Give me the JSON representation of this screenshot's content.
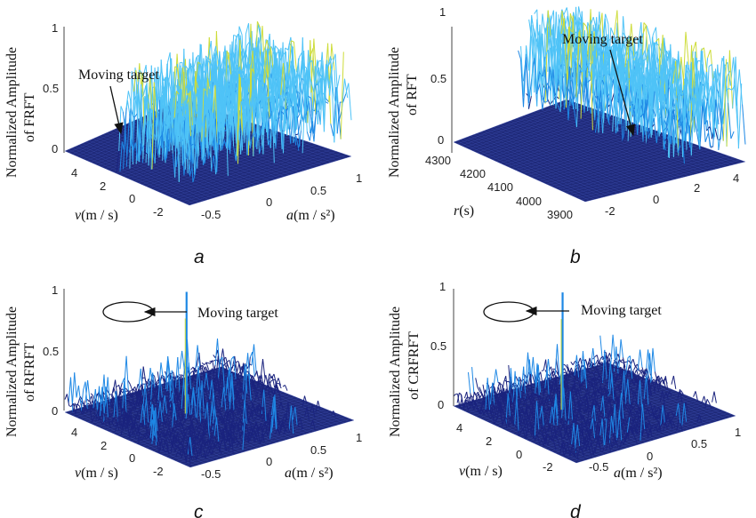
{
  "figure": {
    "title": ""
  },
  "colors": {
    "floor": "#1f2a7a",
    "low": "#1a237e",
    "mid": "#1e88e5",
    "high": "#4fc3f7",
    "peak": "#cddc39",
    "white": "#ffffff"
  },
  "chart_data": [
    {
      "id": "a",
      "type": "surface3d",
      "caption": "a",
      "zlabel_line1": "Normalized Amplitude",
      "zlabel_line2": "of FRFT",
      "z_ticks": [
        "0",
        "0.5",
        "1"
      ],
      "zlim": [
        0,
        1
      ],
      "x_axis": {
        "label_italic": "v",
        "label_rest": "(m / s)",
        "ticks": [
          "4",
          "2",
          "0",
          "-2"
        ]
      },
      "y_axis": {
        "label_italic": "a",
        "label_rest": "(m / s²)",
        "ticks": [
          "-0.5",
          "0",
          "0.5",
          "1"
        ]
      },
      "annotation": "Moving target",
      "description_values": {
        "noise_max_amplitude": 0.75,
        "peak_amplitude": 0.8,
        "target_hidden": true
      }
    },
    {
      "id": "b",
      "type": "surface3d",
      "caption": "b",
      "zlabel_line1": "Normalized Amplitude",
      "zlabel_line2": "of RFT",
      "z_ticks": [
        "0",
        "0.5",
        "1"
      ],
      "zlim": [
        0,
        1
      ],
      "x_axis": {
        "label_italic": "r",
        "label_rest": "(s)",
        "ticks": [
          "4300",
          "4200",
          "4100",
          "4000",
          "3900"
        ]
      },
      "y_axis": {
        "label_italic": "",
        "label_rest": "",
        "ticks": [
          "-2",
          "0",
          "2",
          "4"
        ]
      },
      "annotation": "Moving target",
      "description_values": {
        "noise_max_amplitude": 0.8,
        "target_hidden": true
      }
    },
    {
      "id": "c",
      "type": "surface3d",
      "caption": "c",
      "zlabel_line1": "Normalized Amplitude",
      "zlabel_line2": "of RFRFT",
      "z_ticks": [
        "0",
        "0.5",
        "1"
      ],
      "zlim": [
        0,
        1
      ],
      "x_axis": {
        "label_italic": "v",
        "label_rest": "(m / s)",
        "ticks": [
          "4",
          "2",
          "0",
          "-2"
        ]
      },
      "y_axis": {
        "label_italic": "a",
        "label_rest": "(m / s²)",
        "ticks": [
          "-0.5",
          "0",
          "0.5",
          "1"
        ]
      },
      "annotation": "Moving target",
      "description_values": {
        "noise_max_amplitude": 0.3,
        "peak_amplitude": 1.0
      }
    },
    {
      "id": "d",
      "type": "surface3d",
      "caption": "d",
      "zlabel_line1": "Normalized Amplitude",
      "zlabel_line2": "of CRFRFT",
      "z_ticks": [
        "0",
        "0.5",
        "1"
      ],
      "zlim": [
        0,
        1
      ],
      "x_axis": {
        "label_italic": "v",
        "label_rest": "(m / s)",
        "ticks": [
          "4",
          "2",
          "0",
          "-2"
        ]
      },
      "y_axis": {
        "label_italic": "a",
        "label_rest": "(m / s²)",
        "ticks": [
          "-0.5",
          "0",
          "0.5",
          "1"
        ]
      },
      "annotation": "Moving target",
      "description_values": {
        "noise_max_amplitude": 0.3,
        "peak_amplitude": 1.0
      }
    }
  ]
}
